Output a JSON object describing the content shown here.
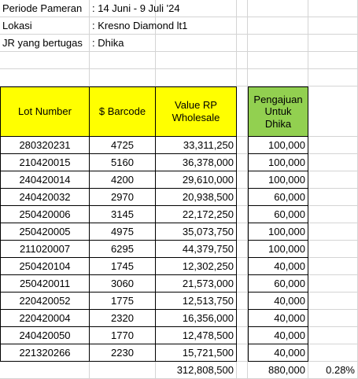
{
  "info": [
    {
      "label": "Periode Pameran",
      "value": ": 14 Juni - 9 Juli '24"
    },
    {
      "label": "Lokasi",
      "value": ": Kresno Diamond lt1"
    },
    {
      "label": "JR yang bertugas",
      "value": ": Dhika"
    }
  ],
  "headers": {
    "lot": "Lot Number",
    "barcode": "$ Barcode",
    "value": "Value RP Wholesale",
    "pengajuan": "Pengajuan Untuk Dhika"
  },
  "rows": [
    {
      "lot": "280320231",
      "barcode": "4725",
      "value": "33,311,250",
      "pengajuan": "100,000"
    },
    {
      "lot": "210420015",
      "barcode": "5160",
      "value": "36,378,000",
      "pengajuan": "100,000"
    },
    {
      "lot": "240420014",
      "barcode": "4200",
      "value": "29,610,000",
      "pengajuan": "100,000"
    },
    {
      "lot": "240420032",
      "barcode": "2970",
      "value": "20,938,500",
      "pengajuan": "60,000"
    },
    {
      "lot": "250420006",
      "barcode": "3145",
      "value": "22,172,250",
      "pengajuan": "60,000"
    },
    {
      "lot": "250420005",
      "barcode": "4975",
      "value": "35,073,750",
      "pengajuan": "100,000"
    },
    {
      "lot": "211020007",
      "barcode": "6295",
      "value": "44,379,750",
      "pengajuan": "100,000"
    },
    {
      "lot": "250420104",
      "barcode": "1745",
      "value": "12,302,250",
      "pengajuan": "40,000"
    },
    {
      "lot": "250420011",
      "barcode": "3060",
      "value": "21,573,000",
      "pengajuan": "60,000"
    },
    {
      "lot": "220420052",
      "barcode": "1775",
      "value": "12,513,750",
      "pengajuan": "40,000"
    },
    {
      "lot": "220420004",
      "barcode": "2320",
      "value": "16,356,000",
      "pengajuan": "40,000"
    },
    {
      "lot": "240420050",
      "barcode": "1770",
      "value": "12,478,500",
      "pengajuan": "40,000"
    },
    {
      "lot": "221320266",
      "barcode": "2230",
      "value": "15,721,500",
      "pengajuan": "40,000"
    }
  ],
  "totals": {
    "value": "312,808,500",
    "pengajuan": "880,000",
    "percent": "0.28%"
  },
  "colors": {
    "header_yellow": "#ffff00",
    "header_green": "#92d050"
  }
}
